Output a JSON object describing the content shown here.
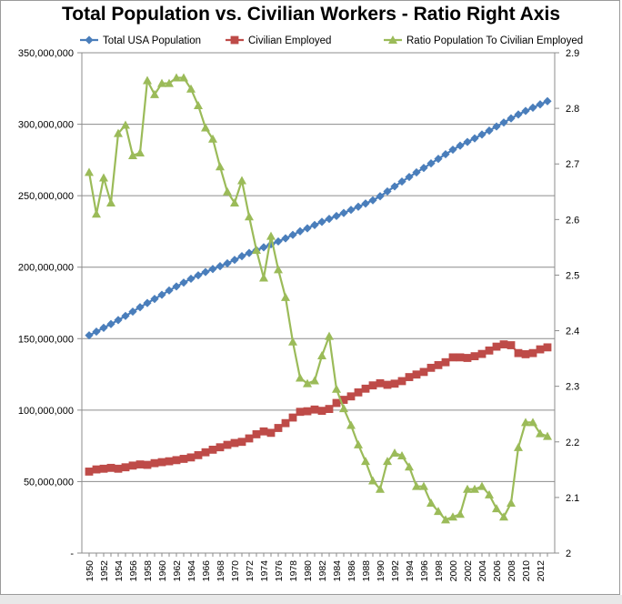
{
  "chart_data": {
    "type": "line",
    "title": "Total Population vs. Civilian Workers - Ratio Right Axis",
    "grid": true,
    "legend_position": "top",
    "x": [
      1950,
      1951,
      1952,
      1953,
      1954,
      1955,
      1956,
      1957,
      1958,
      1959,
      1960,
      1961,
      1962,
      1963,
      1964,
      1965,
      1966,
      1967,
      1968,
      1969,
      1970,
      1971,
      1972,
      1973,
      1974,
      1975,
      1976,
      1977,
      1978,
      1979,
      1980,
      1981,
      1982,
      1983,
      1984,
      1985,
      1986,
      1987,
      1988,
      1989,
      1990,
      1991,
      1992,
      1993,
      1994,
      1995,
      1996,
      1997,
      1998,
      1999,
      2000,
      2001,
      2002,
      2003,
      2004,
      2005,
      2006,
      2007,
      2008,
      2009,
      2010,
      2011,
      2012,
      2013
    ],
    "x_tick_labels": [
      "1950",
      "1952",
      "1954",
      "1956",
      "1958",
      "1960",
      "1962",
      "1964",
      "1966",
      "1968",
      "1970",
      "1972",
      "1974",
      "1976",
      "1978",
      "1980",
      "1982",
      "1984",
      "1986",
      "1988",
      "1990",
      "1992",
      "1994",
      "1996",
      "1998",
      "2000",
      "2002",
      "2004",
      "2006",
      "2008",
      "2010",
      "2012"
    ],
    "y_left": {
      "ylim": [
        0,
        350000000
      ],
      "tick_labels": [
        "-",
        "50,000,000",
        "100,000,000",
        "150,000,000",
        "200,000,000",
        "250,000,000",
        "300,000,000",
        "350,000,000"
      ]
    },
    "y_right": {
      "ylim": [
        2,
        2.9
      ],
      "tick_labels": [
        "2",
        "2.1",
        "2.2",
        "2.3",
        "2.4",
        "2.5",
        "2.6",
        "2.7",
        "2.8",
        "2.9"
      ]
    },
    "series": [
      {
        "name": "Total USA Population",
        "axis": "left",
        "color": "#4a7ebb",
        "marker": "diamond",
        "values": [
          152300000,
          154900000,
          157600000,
          160200000,
          163000000,
          165900000,
          168900000,
          172000000,
          174900000,
          177800000,
          180700000,
          183700000,
          186500000,
          189200000,
          191900000,
          194300000,
          196600000,
          198700000,
          200700000,
          202700000,
          205100000,
          207700000,
          209900000,
          211900000,
          213900000,
          216000000,
          218000000,
          220200000,
          222600000,
          225100000,
          227200000,
          229500000,
          231700000,
          233800000,
          235800000,
          237900000,
          240100000,
          242300000,
          244500000,
          246800000,
          249600000,
          253000000,
          256500000,
          259900000,
          263100000,
          266300000,
          269400000,
          272600000,
          275800000,
          279000000,
          282200000,
          285000000,
          287600000,
          290100000,
          292800000,
          295500000,
          298400000,
          301200000,
          304100000,
          306800000,
          309300000,
          311600000,
          313900000,
          316100000
        ]
      },
      {
        "name": "Civilian Employed",
        "axis": "left",
        "color": "#be4b48",
        "marker": "square",
        "values": [
          57000000,
          58500000,
          59000000,
          59600000,
          59000000,
          60000000,
          61200000,
          62000000,
          61700000,
          62900000,
          63600000,
          64200000,
          65000000,
          65900000,
          66900000,
          68500000,
          70500000,
          72300000,
          74000000,
          75700000,
          77000000,
          77800000,
          80200000,
          83100000,
          85100000,
          84100000,
          87500000,
          90900000,
          94800000,
          98800000,
          99200000,
          100400000,
          99500000,
          100800000,
          105000000,
          107200000,
          109600000,
          112400000,
          115000000,
          117300000,
          118800000,
          117700000,
          118500000,
          120300000,
          123100000,
          124900000,
          126700000,
          129600000,
          131500000,
          133500000,
          136900000,
          136900000,
          136500000,
          137700000,
          139300000,
          141700000,
          144400000,
          146000000,
          145400000,
          139900000,
          139100000,
          139900000,
          142500000,
          143900000
        ]
      },
      {
        "name": "Ratio Population To Civilian Employed",
        "axis": "right",
        "color": "#9bbb59",
        "marker": "triangle",
        "values": [
          2.685,
          2.61,
          2.675,
          2.63,
          2.755,
          2.77,
          2.715,
          2.72,
          2.85,
          2.825,
          2.845,
          2.845,
          2.855,
          2.855,
          2.835,
          2.805,
          2.765,
          2.745,
          2.695,
          2.65,
          2.63,
          2.67,
          2.605,
          2.545,
          2.495,
          2.57,
          2.51,
          2.46,
          2.38,
          2.315,
          2.305,
          2.31,
          2.355,
          2.39,
          2.295,
          2.26,
          2.23,
          2.195,
          2.165,
          2.13,
          2.115,
          2.165,
          2.18,
          2.175,
          2.155,
          2.12,
          2.12,
          2.09,
          2.075,
          2.06,
          2.065,
          2.07,
          2.115,
          2.115,
          2.12,
          2.105,
          2.08,
          2.065,
          2.09,
          2.19,
          2.235,
          2.235,
          2.215,
          2.21
        ]
      }
    ]
  }
}
